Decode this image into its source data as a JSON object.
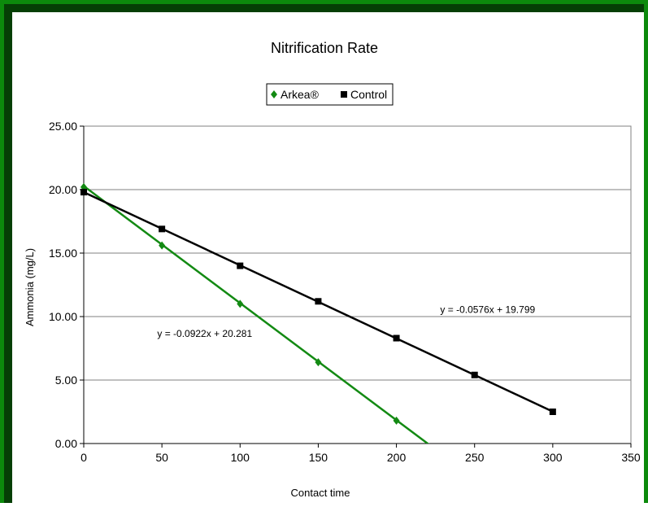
{
  "chart_data": {
    "type": "scatter",
    "title": "Nitrification Rate",
    "xlabel": "Contact time",
    "ylabel": "Ammonia (mg/L)",
    "xlim": [
      0,
      350
    ],
    "ylim": [
      0,
      25
    ],
    "xticks": [
      "0",
      "50",
      "100",
      "150",
      "200",
      "250",
      "300",
      "350"
    ],
    "yticks": [
      "0.00",
      "5.00",
      "10.00",
      "15.00",
      "20.00",
      "25.00"
    ],
    "grid": true,
    "legend_position": "top-center",
    "series": [
      {
        "name": "Arkea®",
        "color": "#138a13",
        "marker": "diamond",
        "x": [
          0,
          50,
          100,
          150,
          200
        ],
        "y": [
          20.2,
          15.6,
          11.0,
          6.4,
          1.8
        ],
        "trendline": {
          "slope": -0.0922,
          "intercept": 20.281,
          "equation": "y = -0.0922x + 20.281"
        }
      },
      {
        "name": "Control",
        "color": "#000000",
        "marker": "square",
        "x": [
          0,
          50,
          100,
          150,
          200,
          250,
          300
        ],
        "y": [
          19.8,
          16.9,
          14.0,
          11.2,
          8.3,
          5.4,
          2.5
        ],
        "trendline": {
          "slope": -0.0576,
          "intercept": 19.799,
          "equation": "y = -0.0576x + 19.799"
        }
      }
    ]
  }
}
